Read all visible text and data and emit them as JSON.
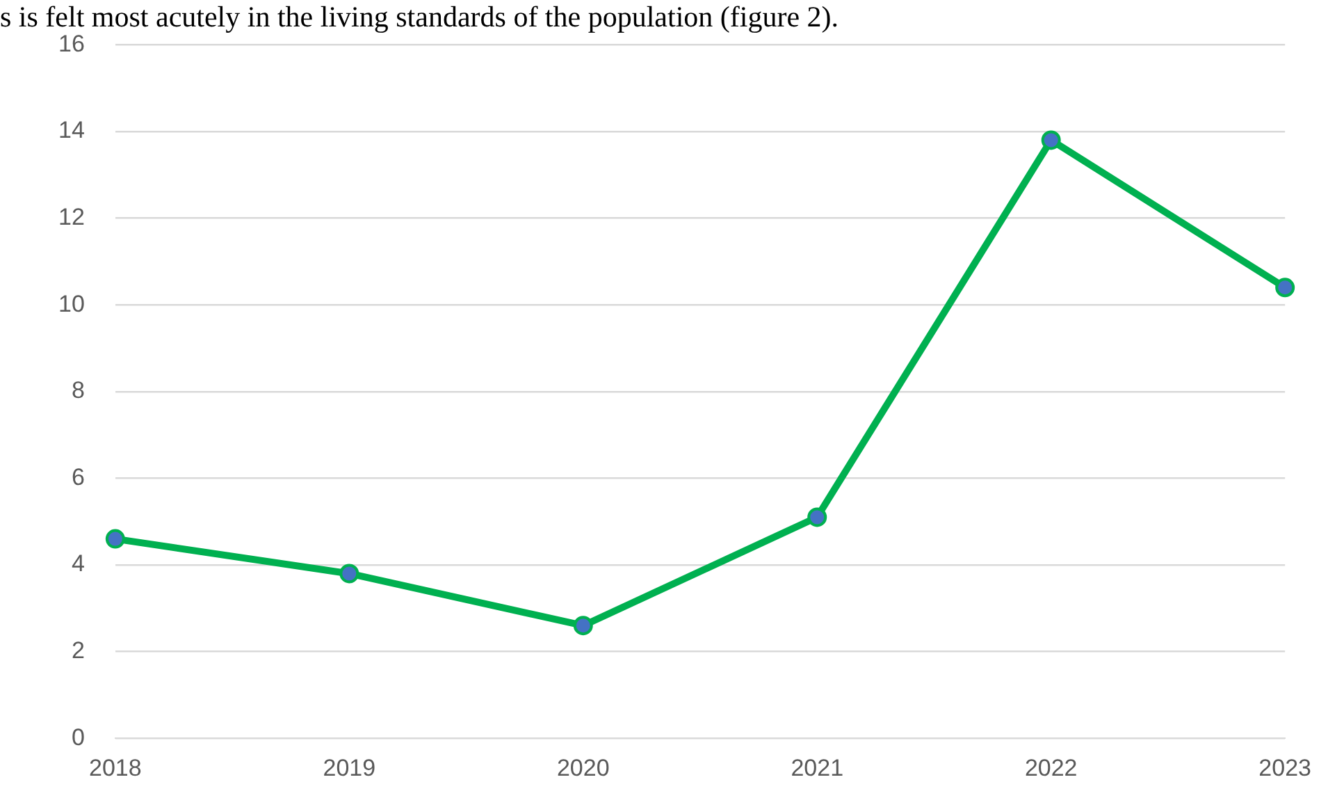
{
  "chart_data": {
    "type": "line",
    "annotations": [
      "s is felt most acutely in the living standards of the population (figure 2)."
    ],
    "categories": [
      "2018",
      "2019",
      "2020",
      "2021",
      "2022",
      "2023"
    ],
    "series": [
      {
        "color": "#00b050",
        "values": [
          4.6,
          3.8,
          2.6,
          5.1,
          13.8,
          10.4
        ]
      }
    ],
    "ylim": [
      0,
      16
    ],
    "yticks": [
      0,
      2,
      4,
      6,
      8,
      10,
      12,
      14,
      16
    ],
    "grid": "y",
    "legend": false,
    "marker": "circle",
    "line_style": "solid"
  }
}
